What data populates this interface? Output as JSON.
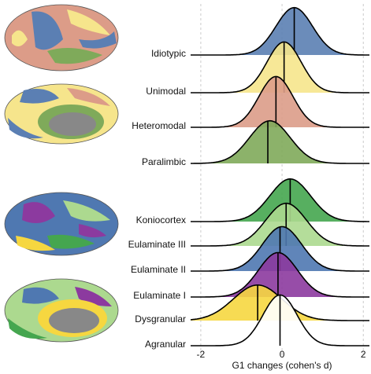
{
  "chart_data": {
    "type": "ridgeline",
    "x_label": "G1 changes (cohen's d)",
    "xlim": [
      -2.25,
      2.15
    ],
    "xticks": [
      -2,
      0,
      2
    ],
    "grid": true,
    "groups": [
      {
        "series": [
          {
            "name": "Idiotypic",
            "color": "#5b7fb3",
            "mean": 0.3,
            "sd": 0.45,
            "median": 0.3
          },
          {
            "name": "Unimodal",
            "color": "#f6e58c",
            "mean": 0.05,
            "sd": 0.42,
            "median": 0.05
          },
          {
            "name": "Heteromodal",
            "color": "#dc9c88",
            "mean": -0.15,
            "sd": 0.42,
            "median": -0.15
          },
          {
            "name": "Paralimbic",
            "color": "#7faa5a",
            "mean": -0.3,
            "sd": 0.5,
            "median": -0.35
          }
        ]
      },
      {
        "series": [
          {
            "name": "Koniocortex",
            "color": "#45a64f",
            "mean": 0.2,
            "sd": 0.5,
            "median": 0.2
          },
          {
            "name": "Eulaminate III",
            "color": "#acd98f",
            "mean": 0.1,
            "sd": 0.5,
            "median": 0.1
          },
          {
            "name": "Eulaminate II",
            "color": "#4f78b1",
            "mean": 0.0,
            "sd": 0.48,
            "median": -0.05
          },
          {
            "name": "Eulaminate I",
            "color": "#8c3a9f",
            "mean": -0.1,
            "sd": 0.48,
            "median": -0.1
          },
          {
            "name": "Dysgranular",
            "color": "#f6d740",
            "mean": -0.6,
            "sd": 0.6,
            "median": -0.6
          },
          {
            "name": "Agranular",
            "color": "#ffffff",
            "mean": -0.05,
            "sd": 0.42,
            "median": -0.05
          }
        ]
      }
    ]
  }
}
